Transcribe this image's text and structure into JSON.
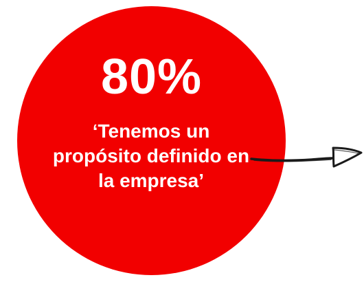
{
  "stat": {
    "value": "80%",
    "caption": "‘Tenemos un propósito definido en la empresa’"
  },
  "colors": {
    "circle": "#f20000",
    "text": "#ffffff",
    "arrow": "#1a1a1a"
  },
  "icons": {
    "arrow": "hand-drawn-arrow-icon"
  }
}
